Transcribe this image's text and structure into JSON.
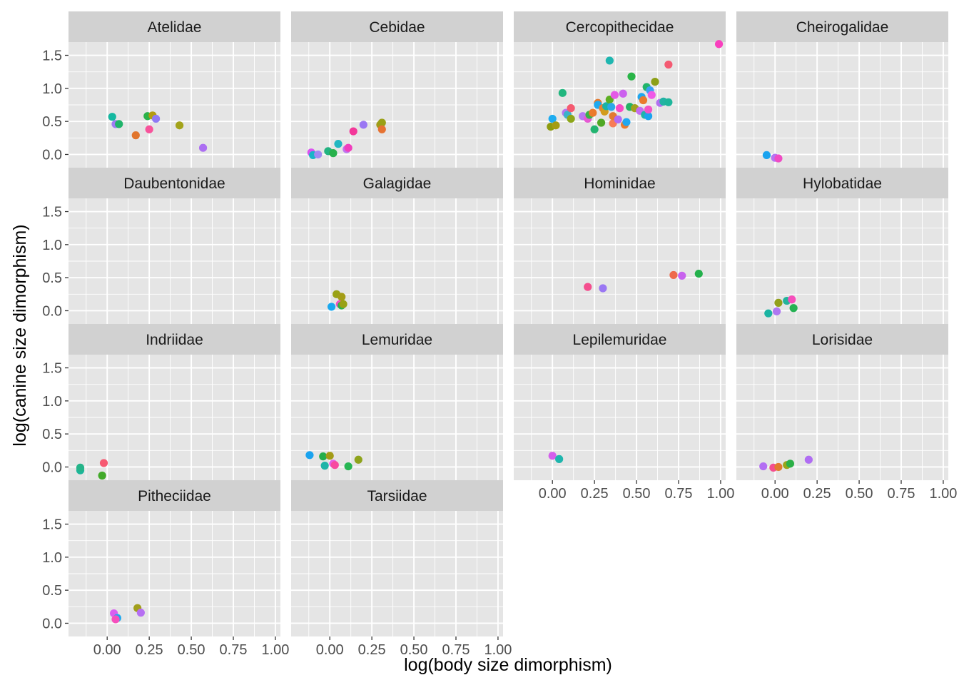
{
  "chart_data": {
    "type": "scatter",
    "layout": "facet_wrap",
    "columns": 4,
    "xlabel": "log(body size dimorphism)",
    "ylabel": "log(canine size dimorphism)",
    "xlim": [
      -0.23,
      1.03
    ],
    "ylim": [
      -0.2,
      1.7
    ],
    "x_ticks": [
      0.0,
      0.25,
      0.5,
      0.75,
      1.0
    ],
    "x_tick_labels": [
      "0.00",
      "0.25",
      "0.50",
      "0.75",
      "1.00"
    ],
    "y_ticks": [
      0.0,
      0.5,
      1.0,
      1.5
    ],
    "y_tick_labels": [
      "0.0",
      "0.5",
      "1.0",
      "1.5"
    ],
    "panel_background": "#e5e5e5",
    "strip_background": "#d1d1d1",
    "grid_color": "#ffffff",
    "legend": "none",
    "facets": [
      {
        "name": "Atelidae",
        "points": [
          {
            "x": 0.03,
            "y": 0.57,
            "color": "#14b8a0"
          },
          {
            "x": 0.05,
            "y": 0.46,
            "color": "#9e7cf2"
          },
          {
            "x": 0.07,
            "y": 0.46,
            "color": "#1fb46a"
          },
          {
            "x": 0.17,
            "y": 0.29,
            "color": "#e1752c"
          },
          {
            "x": 0.24,
            "y": 0.58,
            "color": "#2ab249"
          },
          {
            "x": 0.27,
            "y": 0.59,
            "color": "#b49b10"
          },
          {
            "x": 0.25,
            "y": 0.38,
            "color": "#f7539b"
          },
          {
            "x": 0.29,
            "y": 0.54,
            "color": "#8f79f4"
          },
          {
            "x": 0.43,
            "y": 0.44,
            "color": "#a3a31a"
          },
          {
            "x": 0.57,
            "y": 0.1,
            "color": "#ac6ff2"
          }
        ]
      },
      {
        "name": "Cebidae",
        "points": [
          {
            "x": -0.11,
            "y": 0.03,
            "color": "#db55f0"
          },
          {
            "x": -0.1,
            "y": -0.01,
            "color": "#19b5c8"
          },
          {
            "x": -0.07,
            "y": 0.0,
            "color": "#a18af3"
          },
          {
            "x": -0.01,
            "y": 0.05,
            "color": "#23b381"
          },
          {
            "x": 0.02,
            "y": 0.02,
            "color": "#27b14b"
          },
          {
            "x": 0.05,
            "y": 0.16,
            "color": "#21b7c1"
          },
          {
            "x": 0.1,
            "y": 0.08,
            "color": "#be74ef"
          },
          {
            "x": 0.11,
            "y": 0.1,
            "color": "#f03dbd"
          },
          {
            "x": 0.14,
            "y": 0.35,
            "color": "#f3389a"
          },
          {
            "x": 0.2,
            "y": 0.45,
            "color": "#9a77f3"
          },
          {
            "x": 0.3,
            "y": 0.45,
            "color": "#a49a1a"
          },
          {
            "x": 0.31,
            "y": 0.48,
            "color": "#9aa016"
          },
          {
            "x": 0.31,
            "y": 0.38,
            "color": "#e67232"
          }
        ]
      },
      {
        "name": "Cercopithecidae",
        "points": [
          {
            "x": -0.01,
            "y": 0.42,
            "color": "#8d9b0f"
          },
          {
            "x": 0.0,
            "y": 0.54,
            "color": "#1eacf0"
          },
          {
            "x": 0.02,
            "y": 0.44,
            "color": "#a59c12"
          },
          {
            "x": 0.06,
            "y": 0.93,
            "color": "#21b67e"
          },
          {
            "x": 0.08,
            "y": 0.63,
            "color": "#b574f0"
          },
          {
            "x": 0.09,
            "y": 0.6,
            "color": "#3cb2c7"
          },
          {
            "x": 0.11,
            "y": 0.54,
            "color": "#8da618"
          },
          {
            "x": 0.11,
            "y": 0.7,
            "color": "#f55a70"
          },
          {
            "x": 0.18,
            "y": 0.58,
            "color": "#b67af3"
          },
          {
            "x": 0.21,
            "y": 0.54,
            "color": "#e65ad4"
          },
          {
            "x": 0.22,
            "y": 0.6,
            "color": "#37b149"
          },
          {
            "x": 0.24,
            "y": 0.63,
            "color": "#eb7a2b"
          },
          {
            "x": 0.25,
            "y": 0.38,
            "color": "#22b470"
          },
          {
            "x": 0.27,
            "y": 0.78,
            "color": "#e47a2e"
          },
          {
            "x": 0.27,
            "y": 0.75,
            "color": "#1ea9f0"
          },
          {
            "x": 0.29,
            "y": 0.48,
            "color": "#4fa824"
          },
          {
            "x": 0.3,
            "y": 0.7,
            "color": "#ea7d35"
          },
          {
            "x": 0.31,
            "y": 0.65,
            "color": "#d29c1b"
          },
          {
            "x": 0.32,
            "y": 0.73,
            "color": "#1ab2a8"
          },
          {
            "x": 0.34,
            "y": 0.83,
            "color": "#5daf22"
          },
          {
            "x": 0.34,
            "y": 1.42,
            "color": "#1fb6b0"
          },
          {
            "x": 0.35,
            "y": 0.72,
            "color": "#2ba8e8"
          },
          {
            "x": 0.36,
            "y": 0.47,
            "color": "#f77b56"
          },
          {
            "x": 0.36,
            "y": 0.58,
            "color": "#e37a30"
          },
          {
            "x": 0.37,
            "y": 0.9,
            "color": "#e45ae6"
          },
          {
            "x": 0.39,
            "y": 0.53,
            "color": "#b36af4"
          },
          {
            "x": 0.4,
            "y": 0.7,
            "color": "#f64ac6"
          },
          {
            "x": 0.42,
            "y": 0.92,
            "color": "#cb61ee"
          },
          {
            "x": 0.43,
            "y": 0.45,
            "color": "#e97b2f"
          },
          {
            "x": 0.44,
            "y": 0.49,
            "color": "#1fa8f0"
          },
          {
            "x": 0.46,
            "y": 0.72,
            "color": "#23b364"
          },
          {
            "x": 0.47,
            "y": 1.18,
            "color": "#2ab548"
          },
          {
            "x": 0.49,
            "y": 0.7,
            "color": "#a2a01c"
          },
          {
            "x": 0.52,
            "y": 0.66,
            "color": "#c46bf1"
          },
          {
            "x": 0.53,
            "y": 0.87,
            "color": "#1fa7f0"
          },
          {
            "x": 0.54,
            "y": 0.82,
            "color": "#e97a2e"
          },
          {
            "x": 0.55,
            "y": 0.6,
            "color": "#1eb4a8"
          },
          {
            "x": 0.56,
            "y": 1.02,
            "color": "#20b46a"
          },
          {
            "x": 0.57,
            "y": 0.58,
            "color": "#1aa3ef"
          },
          {
            "x": 0.57,
            "y": 0.68,
            "color": "#f353c6"
          },
          {
            "x": 0.58,
            "y": 0.97,
            "color": "#3aa0f4"
          },
          {
            "x": 0.59,
            "y": 0.9,
            "color": "#f05ae7"
          },
          {
            "x": 0.61,
            "y": 1.1,
            "color": "#8da016"
          },
          {
            "x": 0.64,
            "y": 0.78,
            "color": "#b370f1"
          },
          {
            "x": 0.66,
            "y": 0.8,
            "color": "#23b3a4"
          },
          {
            "x": 0.69,
            "y": 1.36,
            "color": "#f45a72"
          },
          {
            "x": 0.69,
            "y": 0.79,
            "color": "#1eb69b"
          },
          {
            "x": 0.99,
            "y": 1.67,
            "color": "#f93fbe"
          }
        ]
      },
      {
        "name": "Cheirogalidae",
        "points": [
          {
            "x": -0.05,
            "y": -0.01,
            "color": "#1aa3ef"
          },
          {
            "x": 0.0,
            "y": -0.05,
            "color": "#b573f2"
          },
          {
            "x": 0.02,
            "y": -0.06,
            "color": "#f04bc4"
          }
        ]
      },
      {
        "name": "Daubentonidae",
        "points": []
      },
      {
        "name": "Galagidae",
        "points": [
          {
            "x": 0.01,
            "y": 0.06,
            "color": "#19a8ef"
          },
          {
            "x": 0.04,
            "y": 0.25,
            "color": "#99a215"
          },
          {
            "x": 0.06,
            "y": 0.1,
            "color": "#f44fc4"
          },
          {
            "x": 0.07,
            "y": 0.21,
            "color": "#a49d17"
          },
          {
            "x": 0.07,
            "y": 0.08,
            "color": "#27b14b"
          },
          {
            "x": 0.08,
            "y": 0.1,
            "color": "#98a015"
          }
        ]
      },
      {
        "name": "Hominidae",
        "points": [
          {
            "x": 0.21,
            "y": 0.36,
            "color": "#f44e8e"
          },
          {
            "x": 0.3,
            "y": 0.34,
            "color": "#9a77f3"
          },
          {
            "x": 0.72,
            "y": 0.54,
            "color": "#ee6a4b"
          },
          {
            "x": 0.77,
            "y": 0.53,
            "color": "#c863ee"
          },
          {
            "x": 0.87,
            "y": 0.56,
            "color": "#24b14c"
          }
        ]
      },
      {
        "name": "Hylobatidae",
        "points": [
          {
            "x": -0.04,
            "y": -0.04,
            "color": "#1bb4a3"
          },
          {
            "x": 0.01,
            "y": -0.01,
            "color": "#ae78f1"
          },
          {
            "x": 0.02,
            "y": 0.12,
            "color": "#92a01a"
          },
          {
            "x": 0.07,
            "y": 0.15,
            "color": "#22b49b"
          },
          {
            "x": 0.1,
            "y": 0.17,
            "color": "#f64fbc"
          },
          {
            "x": 0.11,
            "y": 0.04,
            "color": "#25b153"
          }
        ]
      },
      {
        "name": "Indriidae",
        "points": [
          {
            "x": -0.16,
            "y": -0.05,
            "color": "#1cb69a"
          },
          {
            "x": -0.16,
            "y": -0.01,
            "color": "#25b489"
          },
          {
            "x": -0.03,
            "y": -0.13,
            "color": "#43aa2a"
          },
          {
            "x": -0.02,
            "y": 0.06,
            "color": "#f75a72"
          }
        ]
      },
      {
        "name": "Lemuridae",
        "points": [
          {
            "x": -0.12,
            "y": 0.18,
            "color": "#1aa3ef"
          },
          {
            "x": -0.04,
            "y": 0.16,
            "color": "#25ae4b"
          },
          {
            "x": -0.03,
            "y": 0.02,
            "color": "#1fb4a8"
          },
          {
            "x": 0.0,
            "y": 0.17,
            "color": "#a39b16"
          },
          {
            "x": 0.02,
            "y": 0.05,
            "color": "#e45fe4"
          },
          {
            "x": 0.03,
            "y": 0.03,
            "color": "#f74aa0"
          },
          {
            "x": 0.11,
            "y": 0.01,
            "color": "#27b653"
          },
          {
            "x": 0.17,
            "y": 0.11,
            "color": "#8ea31b"
          }
        ]
      },
      {
        "name": "Lepilemuridae",
        "points": [
          {
            "x": 0.0,
            "y": 0.17,
            "color": "#d45fec"
          },
          {
            "x": 0.04,
            "y": 0.12,
            "color": "#1eb5ad"
          }
        ]
      },
      {
        "name": "Lorisidae",
        "points": [
          {
            "x": -0.07,
            "y": 0.01,
            "color": "#b36ef3"
          },
          {
            "x": -0.01,
            "y": -0.01,
            "color": "#f44d8f"
          },
          {
            "x": 0.02,
            "y": 0.0,
            "color": "#e17a2f"
          },
          {
            "x": 0.07,
            "y": 0.03,
            "color": "#9ba519"
          },
          {
            "x": 0.09,
            "y": 0.05,
            "color": "#2cb047"
          },
          {
            "x": 0.2,
            "y": 0.11,
            "color": "#b06df3"
          }
        ]
      },
      {
        "name": "Pitheciidae",
        "points": [
          {
            "x": 0.04,
            "y": 0.15,
            "color": "#d95ff0"
          },
          {
            "x": 0.06,
            "y": 0.08,
            "color": "#1ea8ef"
          },
          {
            "x": 0.05,
            "y": 0.06,
            "color": "#f54fbd"
          },
          {
            "x": 0.18,
            "y": 0.23,
            "color": "#a19e1b"
          },
          {
            "x": 0.2,
            "y": 0.16,
            "color": "#b66ff2"
          }
        ]
      },
      {
        "name": "Tarsiidae",
        "points": []
      }
    ]
  }
}
